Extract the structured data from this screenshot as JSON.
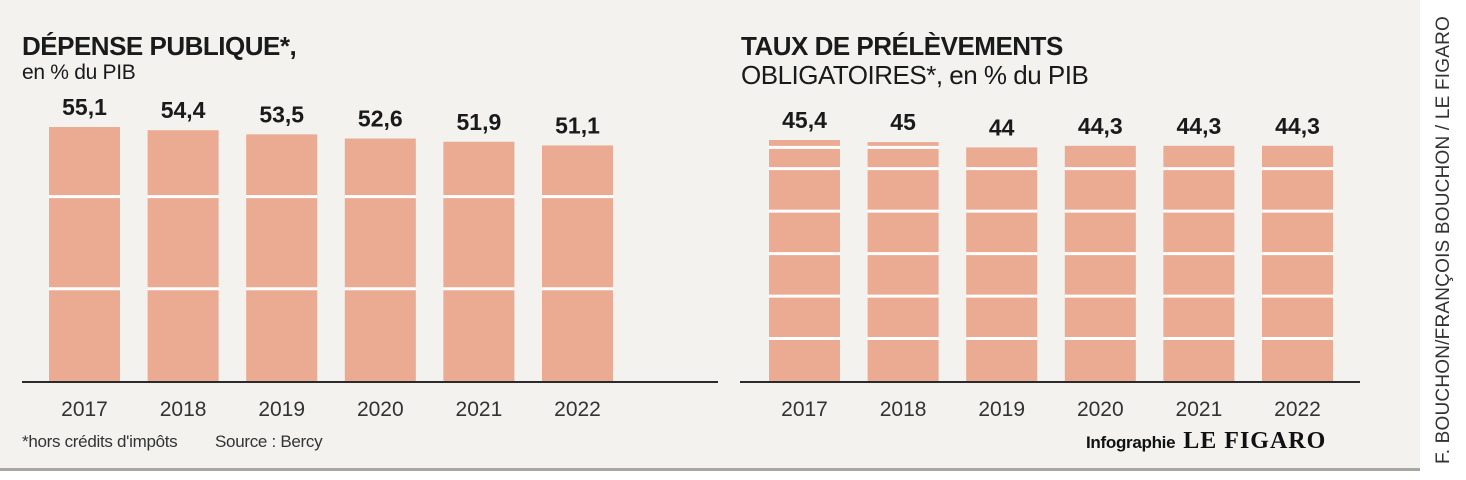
{
  "colors": {
    "bar": "#ebaa92",
    "bar_line": "#ffffff",
    "axis": "#2b2b2b",
    "panel_bg": "#f3f2ef",
    "text": "#1a1a1a"
  },
  "left": {
    "title_line1": "DÉPENSE PUBLIQUE*,",
    "title_line2": "en % du PIB",
    "footnote": "*hors crédits d'impôts",
    "source": "Source : Bercy"
  },
  "right": {
    "title_line1": "TAUX DE PRÉLÈVEMENTS",
    "title_line2": "OBLIGATOIRES*, en % du PIB"
  },
  "credit": {
    "infographie": "Infographie",
    "brand": "LE FIGARO",
    "vertical": "F. BOUCHON/FRANÇOIS BOUCHON / LE FIGARO"
  },
  "chart_data": [
    {
      "type": "bar",
      "title": "DÉPENSE PUBLIQUE*, en % du PIB",
      "categories": [
        "2017",
        "2018",
        "2019",
        "2020",
        "2021",
        "2022"
      ],
      "values": [
        55.1,
        54.4,
        53.5,
        52.6,
        51.9,
        51.1
      ],
      "value_labels": [
        "55,1",
        "54,4",
        "53,5",
        "52,6",
        "51,9",
        "51,1"
      ],
      "ylim": [
        0,
        55.1
      ],
      "grid_lines": [
        20,
        40
      ],
      "grid": "white lines across bars"
    },
    {
      "type": "bar",
      "title": "TAUX DE PRÉLÈVEMENTS OBLIGATOIRES*, en % du PIB",
      "categories": [
        "2017",
        "2018",
        "2019",
        "2020",
        "2021",
        "2022"
      ],
      "values": [
        45.4,
        45,
        44,
        44.3,
        44.3,
        44.3
      ],
      "value_labels": [
        "45,4",
        "45",
        "44",
        "44,3",
        "44,3",
        "44,3"
      ],
      "ylim": [
        0,
        45.4
      ],
      "grid_lines": [
        8,
        16,
        24,
        32,
        40,
        44
      ],
      "grid": "white lines across bars"
    }
  ]
}
